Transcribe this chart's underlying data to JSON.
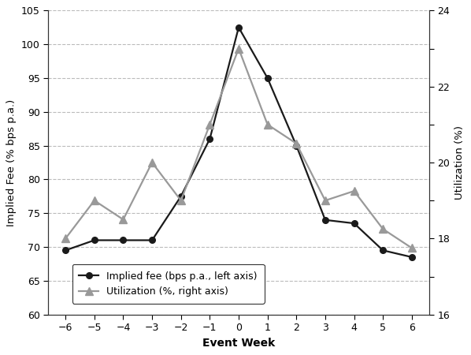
{
  "x": [
    -6,
    -5,
    -4,
    -3,
    -2,
    -1,
    0,
    1,
    2,
    3,
    4,
    5,
    6
  ],
  "implied_fee": [
    69.5,
    71.0,
    71.0,
    71.0,
    77.5,
    86.0,
    102.5,
    95.0,
    85.0,
    74.0,
    73.5,
    69.5,
    68.5
  ],
  "utilization": [
    18.0,
    19.0,
    18.5,
    20.0,
    19.0,
    21.0,
    23.0,
    21.0,
    20.5,
    19.0,
    19.25,
    18.25,
    17.75
  ],
  "fee_ylim": [
    60,
    105
  ],
  "fee_yticks": [
    60,
    65,
    70,
    75,
    80,
    85,
    90,
    95,
    100,
    105
  ],
  "util_ylim": [
    16,
    24
  ],
  "util_yticks": [
    16,
    17,
    18,
    19,
    20,
    21,
    22,
    23,
    24
  ],
  "xlabel": "Event Week",
  "ylabel_left": "Implied Fee (% bps p.a.)",
  "ylabel_right": "Utilization (%)",
  "legend_fee": "Implied fee (bps p.a., left axis)",
  "legend_util": "Utilization (%, right axis)",
  "line_color_fee": "#1a1a1a",
  "line_color_util": "#999999",
  "xticks": [
    -6,
    -5,
    -4,
    -3,
    -2,
    -1,
    0,
    1,
    2,
    3,
    4,
    5,
    6
  ],
  "grid_color": "#bbbbbb",
  "background_color": "#ffffff",
  "spine_color": "#333333"
}
